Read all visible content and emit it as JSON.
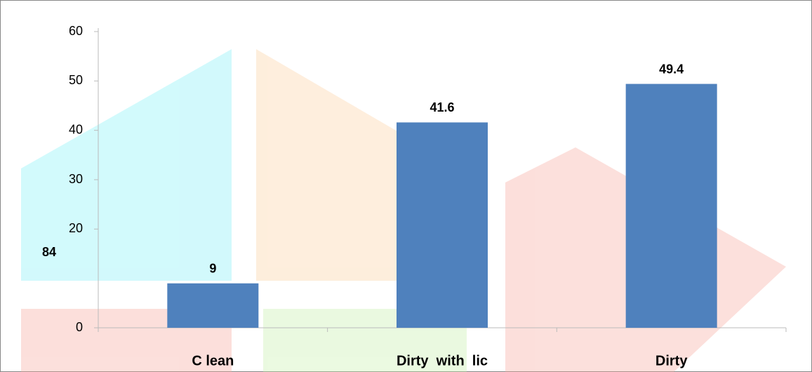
{
  "chart_data": {
    "type": "bar",
    "categories": [
      "C lean",
      "Dirty  with  lic",
      "Dirty"
    ],
    "values": [
      9,
      41.6,
      49.4
    ],
    "color": "#4f81bd",
    "ylim": [
      0,
      60
    ],
    "yticks": [
      0,
      20,
      30,
      40,
      50,
      60
    ],
    "annotation": "84"
  }
}
